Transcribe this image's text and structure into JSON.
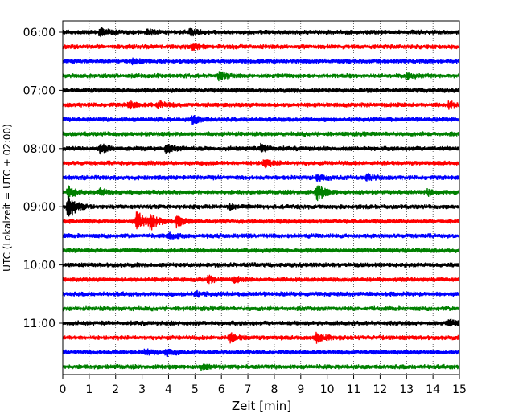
{
  "chart_data": {
    "type": "line",
    "title": "",
    "xlabel": "Zeit  [min]",
    "ylabel": "UTC (Lokalzeit = UTC + 02:00)",
    "xlim": [
      0,
      15
    ],
    "x_ticks": [
      0,
      1,
      2,
      3,
      4,
      5,
      6,
      7,
      8,
      9,
      10,
      11,
      12,
      13,
      14,
      15
    ],
    "x_tick_labels": [
      "0",
      "1",
      "2",
      "3",
      "4",
      "5",
      "6",
      "7",
      "8",
      "9",
      "10",
      "11",
      "12",
      "13",
      "14",
      "15"
    ],
    "y_tick_labels": [
      "06:00",
      "07:00",
      "08:00",
      "09:00",
      "10:00",
      "11:00"
    ],
    "trace_minutes_per_line": 15,
    "trace_colors": [
      "#000000",
      "#ff0000",
      "#0000ff",
      "#008000"
    ],
    "grid": "vertical dotted at each minute",
    "traces": [
      {
        "start": "06:00",
        "color": "#000000",
        "events": [
          {
            "t": 1.4,
            "amp": 0.8
          },
          {
            "t": 3.2,
            "amp": 0.5
          },
          {
            "t": 4.8,
            "amp": 0.5
          }
        ]
      },
      {
        "start": "06:15",
        "color": "#ff0000",
        "events": [
          {
            "t": 4.9,
            "amp": 0.5
          }
        ]
      },
      {
        "start": "06:30",
        "color": "#0000ff",
        "events": [
          {
            "t": 2.6,
            "amp": 0.4
          }
        ]
      },
      {
        "start": "06:45",
        "color": "#008000",
        "events": [
          {
            "t": 5.9,
            "amp": 0.7
          },
          {
            "t": 13.0,
            "amp": 0.6
          }
        ]
      },
      {
        "start": "07:00",
        "color": "#000000",
        "events": []
      },
      {
        "start": "07:15",
        "color": "#ff0000",
        "events": [
          {
            "t": 2.5,
            "amp": 0.6
          },
          {
            "t": 3.6,
            "amp": 0.6
          },
          {
            "t": 14.6,
            "amp": 0.5
          }
        ]
      },
      {
        "start": "07:30",
        "color": "#0000ff",
        "events": [
          {
            "t": 4.9,
            "amp": 0.9
          }
        ]
      },
      {
        "start": "07:45",
        "color": "#008000",
        "events": []
      },
      {
        "start": "08:00",
        "color": "#000000",
        "events": [
          {
            "t": 1.4,
            "amp": 1.0
          },
          {
            "t": 3.9,
            "amp": 0.9
          },
          {
            "t": 7.5,
            "amp": 0.8
          }
        ]
      },
      {
        "start": "08:15",
        "color": "#ff0000",
        "events": [
          {
            "t": 7.6,
            "amp": 0.9
          }
        ]
      },
      {
        "start": "08:30",
        "color": "#0000ff",
        "events": [
          {
            "t": 9.6,
            "amp": 0.6
          },
          {
            "t": 11.5,
            "amp": 0.5
          }
        ]
      },
      {
        "start": "08:45",
        "color": "#008000",
        "events": [
          {
            "t": 0.2,
            "amp": 1.2
          },
          {
            "t": 1.4,
            "amp": 0.7
          },
          {
            "t": 9.6,
            "amp": 1.8
          },
          {
            "t": 13.8,
            "amp": 0.5
          }
        ]
      },
      {
        "start": "09:00",
        "color": "#000000",
        "events": [
          {
            "t": 0.2,
            "amp": 2.6
          },
          {
            "t": 6.3,
            "amp": 0.5
          }
        ]
      },
      {
        "start": "09:15",
        "color": "#ff0000",
        "events": [
          {
            "t": 2.8,
            "amp": 2.0
          },
          {
            "t": 3.3,
            "amp": 1.6
          },
          {
            "t": 4.3,
            "amp": 1.0
          }
        ]
      },
      {
        "start": "09:30",
        "color": "#0000ff",
        "events": [
          {
            "t": 4.0,
            "amp": 0.6
          }
        ]
      },
      {
        "start": "09:45",
        "color": "#008000",
        "events": []
      },
      {
        "start": "10:00",
        "color": "#000000",
        "events": []
      },
      {
        "start": "10:15",
        "color": "#ff0000",
        "events": [
          {
            "t": 5.5,
            "amp": 0.6
          },
          {
            "t": 6.5,
            "amp": 0.5
          }
        ]
      },
      {
        "start": "10:30",
        "color": "#0000ff",
        "events": [
          {
            "t": 5.0,
            "amp": 0.5
          }
        ]
      },
      {
        "start": "10:45",
        "color": "#008000",
        "events": []
      },
      {
        "start": "11:00",
        "color": "#000000",
        "events": [
          {
            "t": 14.6,
            "amp": 0.6
          }
        ]
      },
      {
        "start": "11:15",
        "color": "#ff0000",
        "events": [
          {
            "t": 6.3,
            "amp": 0.9
          },
          {
            "t": 9.6,
            "amp": 0.9
          }
        ]
      },
      {
        "start": "11:30",
        "color": "#0000ff",
        "events": [
          {
            "t": 3.1,
            "amp": 0.5
          },
          {
            "t": 3.9,
            "amp": 0.6
          }
        ]
      },
      {
        "start": "11:45",
        "color": "#008000",
        "events": [
          {
            "t": 5.2,
            "amp": 0.5
          }
        ]
      }
    ]
  }
}
